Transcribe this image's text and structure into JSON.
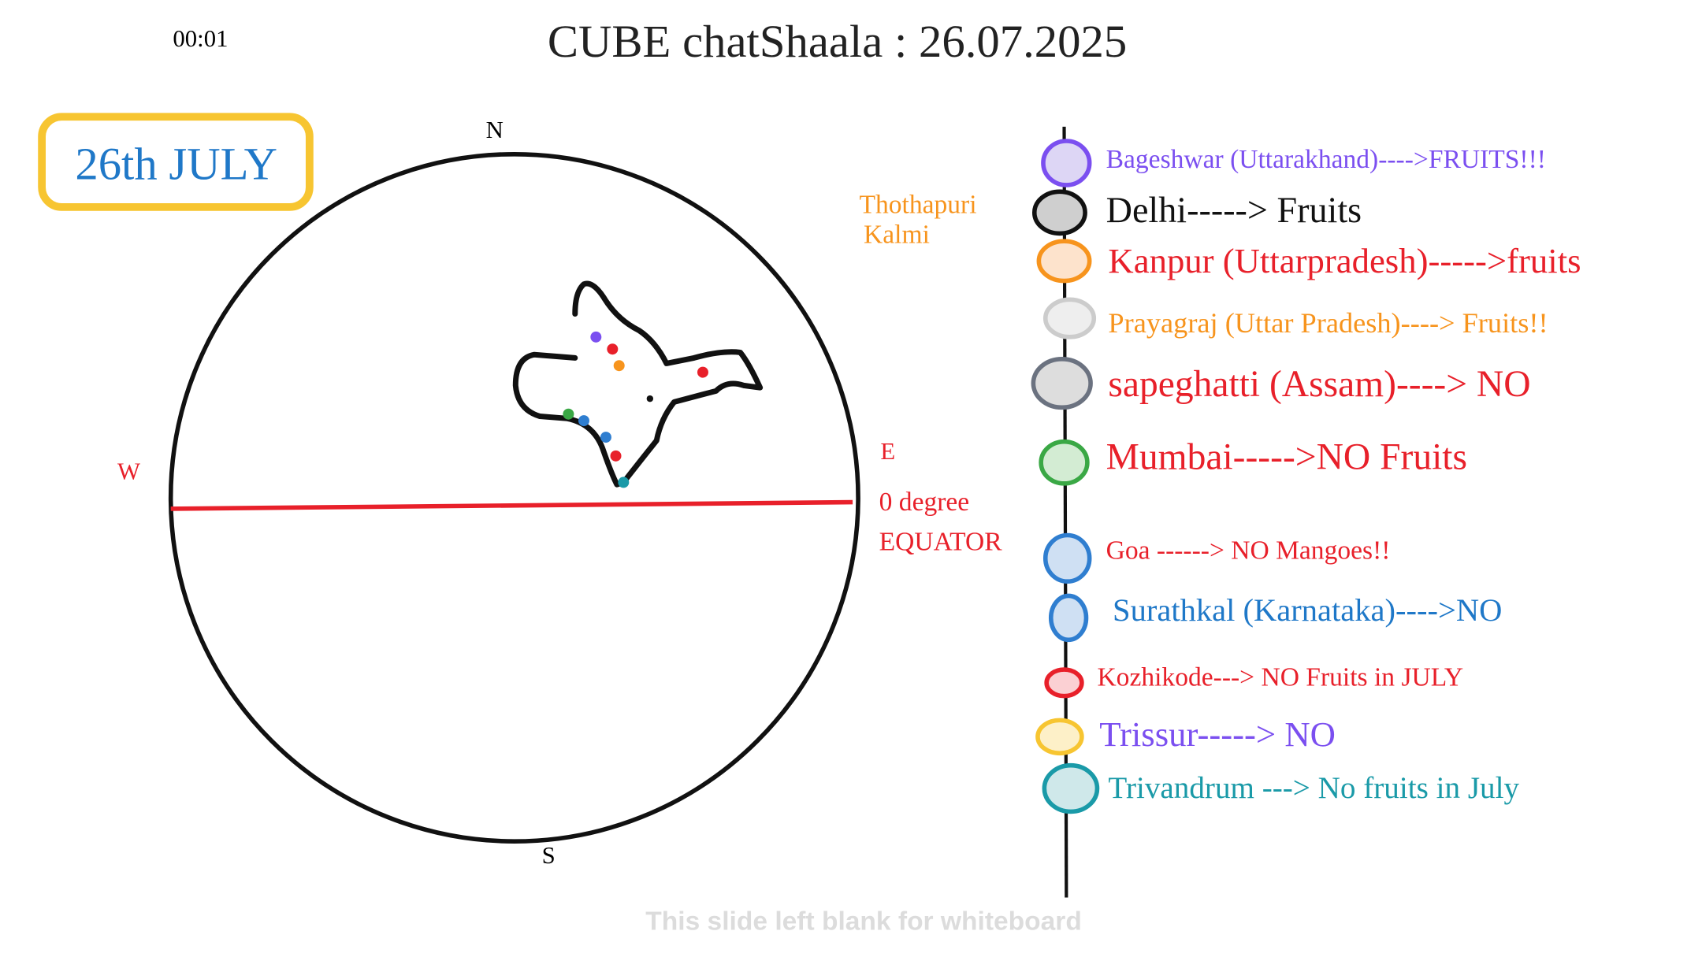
{
  "header": {
    "timer": "00:01",
    "title": "CUBE chatShaala : 26.07.2025"
  },
  "date_label": "26th JULY",
  "compass": {
    "north": "N",
    "south": "S",
    "west": "W",
    "east": "E",
    "equator_degree": "0 degree",
    "equator": "EQUATOR"
  },
  "note": [
    "Thothapuri",
    "Kalmi"
  ],
  "locations": [
    {
      "label": "Bageshwar (Uttarakhand)---->FRUITS!!!",
      "color": "#7b4ff0",
      "fill": "#ddd6f5"
    },
    {
      "label": "Delhi-----> Fruits",
      "color": "#111111",
      "fill": "#cfcfcf"
    },
    {
      "label": "Kanpur (Uttarpradesh)----->fruits",
      "color": "#e8202a",
      "fill": "#fde3cc"
    },
    {
      "label": "Prayagraj (Uttar Pradesh)----> Fruits!!",
      "color": "#f7941d",
      "fill": "#eeeeee"
    },
    {
      "label": "sapeghatti (Assam)----> NO",
      "color": "#e8202a",
      "fill": "#dddddd"
    },
    {
      "label": "Mumbai----->NO Fruits",
      "color": "#e8202a",
      "fill": "#d3ecd3"
    },
    {
      "label": "Goa ------> NO Mangoes!!",
      "color": "#e8202a",
      "fill": "#cfe0f3"
    },
    {
      "label": "Surathkal (Karnataka)---->NO",
      "color": "#1f78c8",
      "fill": "#cfe0f3"
    },
    {
      "label": "Kozhikode---> NO Fruits in JULY",
      "color": "#e8202a",
      "fill": "#fbd0d3"
    },
    {
      "label": "Trissur-----> NO",
      "color": "#7b4ff0",
      "fill": "#fdf0c8"
    },
    {
      "label": "Trivandrum ---> No fruits in July",
      "color": "#1a9aa8",
      "fill": "#cfe8ea"
    }
  ],
  "footer": "This slide left blank for whiteboard"
}
